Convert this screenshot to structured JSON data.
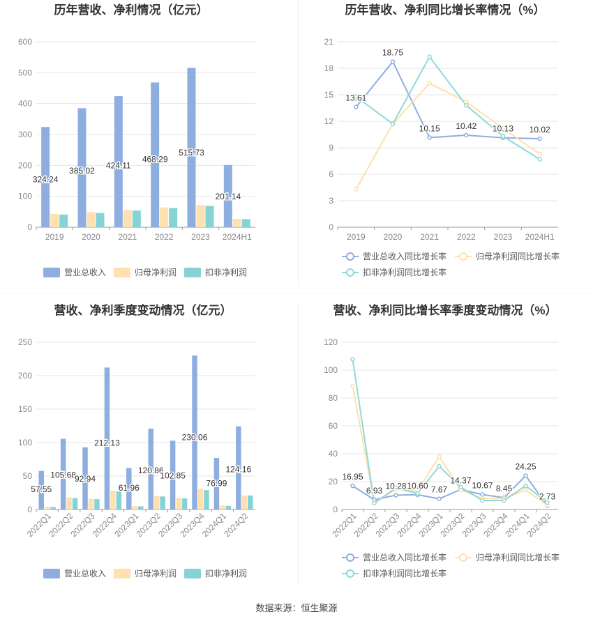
{
  "colors": {
    "revenue": "#8eaee0",
    "parent_net": "#ffe0b0",
    "deducted_net": "#86d3d6"
  },
  "legend": {
    "revenue": "营业总收入",
    "parent_net": "归母净利润",
    "deducted_net": "扣非净利润",
    "revenue_growth": "营业总收入同比增长率",
    "parent_net_growth": "归母净利润同比增长率",
    "deducted_net_growth": "扣非净利润同比增长率"
  },
  "source_text": "数据来源：恒生聚源",
  "chart_data": [
    {
      "type": "bar",
      "title": "历年营收、净利情况（亿元）",
      "categories": [
        "2019",
        "2020",
        "2021",
        "2022",
        "2023",
        "2024H1"
      ],
      "ylim": [
        0,
        600
      ],
      "yticks": [
        0,
        100,
        200,
        300,
        400,
        500,
        600
      ],
      "series": [
        {
          "name": "营业总收入",
          "values": [
            324.24,
            385.02,
            424.11,
            468.29,
            515.73,
            201.14
          ],
          "labels": [
            "324.24",
            "385.02",
            "424.11",
            "468.29",
            "515.73",
            "201.14"
          ]
        },
        {
          "name": "归母净利润",
          "values": [
            43,
            49,
            56,
            64,
            72,
            27
          ]
        },
        {
          "name": "扣非净利润",
          "values": [
            41,
            46,
            54,
            62,
            69,
            26
          ]
        }
      ],
      "legend_position": "bottom",
      "grid": true
    },
    {
      "type": "line",
      "title": "历年营收、净利同比增长率情况（%）",
      "categories": [
        "2019",
        "2020",
        "2021",
        "2022",
        "2023",
        "2024H1"
      ],
      "ylim": [
        0,
        21
      ],
      "yticks": [
        0,
        3,
        6,
        9,
        12,
        15,
        18,
        21
      ],
      "series": [
        {
          "name": "营业总收入同比增长率",
          "values": [
            13.61,
            18.75,
            10.15,
            10.42,
            10.13,
            10.02
          ],
          "labels": [
            "13.61",
            "18.75",
            "10.15",
            "10.42",
            "10.13",
            "10.02"
          ]
        },
        {
          "name": "归母净利润同比增长率",
          "values": [
            4.3,
            11.7,
            16.3,
            14.2,
            11.2,
            8.3
          ]
        },
        {
          "name": "扣非净利润同比增长率",
          "values": [
            14.8,
            11.7,
            19.3,
            13.8,
            10.3,
            7.7
          ]
        }
      ],
      "legend_position": "bottom",
      "grid": true
    },
    {
      "type": "bar",
      "title": "营收、净利季度变动情况（亿元）",
      "categories": [
        "2022Q1",
        "2022Q2",
        "2022Q3",
        "2022Q4",
        "2023Q1",
        "2023Q2",
        "2023Q3",
        "2023Q4",
        "2024Q1",
        "2024Q2"
      ],
      "ylim": [
        0,
        250
      ],
      "yticks": [
        0,
        50,
        100,
        150,
        200,
        250
      ],
      "series": [
        {
          "name": "营业总收入",
          "values": [
            57.55,
            105.68,
            92.94,
            212.13,
            61.96,
            120.86,
            102.85,
            230.06,
            76.99,
            124.16
          ],
          "labels": [
            "57.55",
            "105.68",
            "92.94",
            "212.13",
            "61.96",
            "120.86",
            "102.85",
            "230.06",
            "76.99",
            "124.16"
          ]
        },
        {
          "name": "归母净利润",
          "values": [
            4,
            18,
            16,
            28,
            5,
            20,
            17,
            31,
            6,
            21
          ]
        },
        {
          "name": "扣非净利润",
          "values": [
            3.5,
            17,
            15.5,
            27,
            4.8,
            19.5,
            16.5,
            29,
            5.5,
            21
          ]
        }
      ],
      "legend_position": "bottom",
      "grid": true
    },
    {
      "type": "line",
      "title": "营收、净利同比增长率季度变动情况（%）",
      "categories": [
        "2022Q1",
        "2022Q2",
        "2022Q3",
        "2022Q4",
        "2023Q1",
        "2023Q2",
        "2023Q3",
        "2023Q4",
        "2024Q1",
        "2024Q2"
      ],
      "ylim": [
        0,
        120
      ],
      "yticks": [
        0,
        20,
        40,
        60,
        80,
        100,
        120
      ],
      "series": [
        {
          "name": "营业总收入同比增长率",
          "values": [
            16.95,
            6.93,
            10.28,
            10.6,
            7.67,
            14.37,
            10.67,
            8.45,
            24.25,
            2.73
          ],
          "labels": [
            "16.95",
            "6.93",
            "10.28",
            "10.60",
            "7.67",
            "14.37",
            "10.67",
            "8.45",
            "24.25",
            "2.73"
          ]
        },
        {
          "name": "归母净利润同比增长率",
          "values": [
            88.5,
            5.0,
            14.5,
            13.5,
            38.0,
            14.0,
            8.0,
            8.0,
            14.0,
            3.0
          ]
        },
        {
          "name": "扣非净利润同比增长率",
          "values": [
            107.7,
            4.5,
            15.5,
            11.5,
            31.0,
            16.0,
            6.5,
            6.5,
            17.0,
            5.0
          ]
        }
      ],
      "legend_position": "bottom",
      "grid": true
    }
  ]
}
